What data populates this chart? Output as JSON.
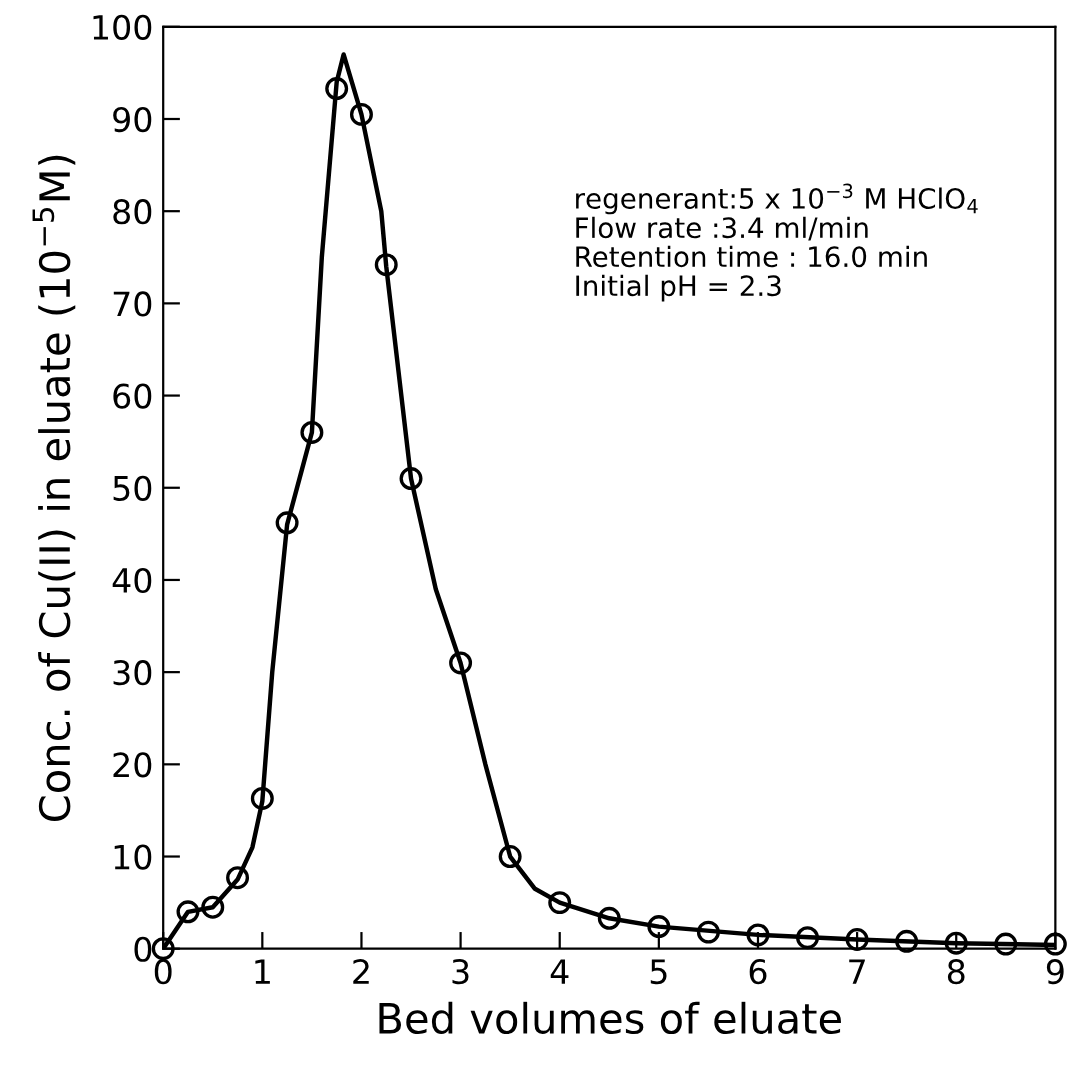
{
  "chart_data": {
    "type": "line",
    "xlabel": "Bed volumes of eluate",
    "ylabel": "Conc. of Cu(II) in eluate (10$^{−5}$M)",
    "xlim": [
      0,
      9
    ],
    "xticks": [
      0,
      1,
      2,
      3,
      4,
      5,
      6,
      7,
      8,
      9
    ],
    "ylim": [
      0,
      100
    ],
    "yticks": [
      0,
      10,
      20,
      30,
      40,
      50,
      60,
      70,
      80,
      90,
      100
    ],
    "grid": false,
    "legend": false,
    "annotations": [
      "regenerant:5 x 10$^{−3}$ M HClO$_{4}$\nFlow rate :3.4 ml/min\nRetention time : 16.0 min\nInitial pH = 2.3"
    ],
    "series": [
      {
        "type": "scatter",
        "color": "#000000",
        "marker": "circle",
        "x": [
          0,
          0.25,
          0.5,
          0.75,
          1.0,
          1.25,
          1.5,
          1.75,
          2.0,
          2.25,
          2.5,
          3.0,
          3.5,
          4.0,
          4.5,
          5.0,
          5.5,
          6.0,
          6.5,
          7.0,
          7.5,
          8.0,
          8.5,
          9.0
        ],
        "values": [
          0,
          4,
          4.5,
          7.7,
          16.3,
          46.2,
          56,
          93.3,
          90.5,
          74.2,
          51,
          31,
          10,
          5,
          3.3,
          2.4,
          1.8,
          1.5,
          1.2,
          1,
          0.8,
          0.6,
          0.5,
          0.5
        ]
      },
      {
        "color": "#000000",
        "marker": "none",
        "line_style": "solid",
        "x": [
          0,
          0.25,
          0.5,
          0.75,
          0.9,
          1.0,
          1.1,
          1.25,
          1.4,
          1.5,
          1.6,
          1.75,
          1.82,
          2.0,
          2.2,
          2.25,
          2.5,
          2.75,
          3.0,
          3.25,
          3.5,
          3.75,
          4.0,
          4.5,
          5.0,
          6.0,
          7.0,
          8.0,
          9.0
        ],
        "values": [
          0,
          4,
          4.5,
          7.5,
          11,
          16,
          30,
          46,
          52,
          56,
          75,
          94,
          97,
          90.5,
          80,
          74,
          51,
          39,
          31,
          20,
          10,
          6.5,
          5,
          3.3,
          2.4,
          1.5,
          1,
          0.6,
          0.4
        ]
      }
    ]
  }
}
